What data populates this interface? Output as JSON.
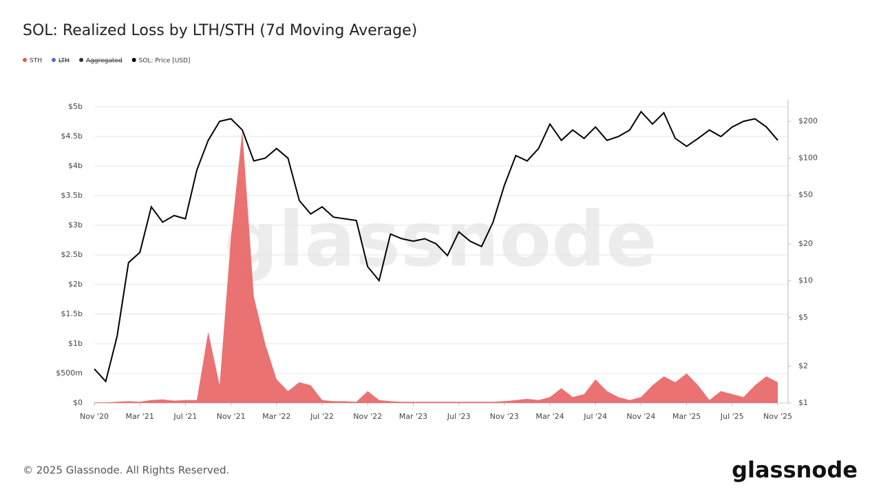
{
  "chart_data": {
    "type": "area-line",
    "title": "SOL: Realized Loss by LTH/STH (7d Moving Average)",
    "watermark": "glassnode",
    "footer": "© 2025 Glassnode. All Rights Reserved.",
    "logo": "glassnode",
    "legend": [
      {
        "name": "STH",
        "color": "#e05a5a",
        "hidden": false
      },
      {
        "name": "LTH",
        "color": "#5868d0",
        "hidden": true
      },
      {
        "name": "Aggregated",
        "color": "#333333",
        "hidden": true
      },
      {
        "name": "SOL: Price [USD]",
        "color": "#000000",
        "hidden": false
      }
    ],
    "categories": [
      "2020-11",
      "2020-12",
      "2021-01",
      "2021-02",
      "2021-03",
      "2021-04",
      "2021-05",
      "2021-06",
      "2021-07",
      "2021-08",
      "2021-09",
      "2021-10",
      "2021-11",
      "2021-12",
      "2022-01",
      "2022-02",
      "2022-03",
      "2022-04",
      "2022-05",
      "2022-06",
      "2022-07",
      "2022-08",
      "2022-09",
      "2022-10",
      "2022-11",
      "2022-12",
      "2023-01",
      "2023-02",
      "2023-03",
      "2023-04",
      "2023-05",
      "2023-06",
      "2023-07",
      "2023-08",
      "2023-09",
      "2023-10",
      "2023-11",
      "2023-12",
      "2024-01",
      "2024-02",
      "2024-03",
      "2024-04",
      "2024-05",
      "2024-06",
      "2024-07",
      "2024-08",
      "2024-09",
      "2024-10",
      "2024-11",
      "2024-12",
      "2025-01",
      "2025-02",
      "2025-03",
      "2025-04",
      "2025-05",
      "2025-06",
      "2025-07",
      "2025-08",
      "2025-09",
      "2025-10",
      "2025-11"
    ],
    "series": [
      {
        "name": "STH",
        "color": "#e96a6a",
        "axis": "y",
        "values": [
          0.01,
          0.01,
          0.02,
          0.03,
          0.02,
          0.05,
          0.06,
          0.04,
          0.05,
          0.05,
          1.2,
          0.3,
          2.8,
          4.6,
          1.8,
          1.0,
          0.4,
          0.2,
          0.35,
          0.3,
          0.05,
          0.03,
          0.03,
          0.02,
          0.2,
          0.05,
          0.03,
          0.02,
          0.02,
          0.02,
          0.02,
          0.02,
          0.02,
          0.02,
          0.02,
          0.02,
          0.03,
          0.05,
          0.07,
          0.05,
          0.1,
          0.25,
          0.1,
          0.15,
          0.4,
          0.2,
          0.1,
          0.05,
          0.1,
          0.3,
          0.45,
          0.35,
          0.5,
          0.3,
          0.05,
          0.2,
          0.15,
          0.1,
          0.3,
          0.45,
          0.35
        ]
      },
      {
        "name": "SOL: Price [USD]",
        "color": "#000000",
        "axis": "y2",
        "values": [
          1.9,
          1.5,
          3.5,
          14,
          17,
          40,
          30,
          34,
          32,
          80,
          140,
          200,
          210,
          170,
          95,
          100,
          120,
          100,
          45,
          35,
          40,
          33,
          32,
          31,
          13,
          10,
          24,
          22,
          21,
          22,
          20,
          16,
          25,
          21,
          19,
          30,
          60,
          105,
          95,
          120,
          190,
          140,
          170,
          145,
          180,
          140,
          150,
          170,
          240,
          190,
          235,
          145,
          125,
          145,
          170,
          150,
          180,
          200,
          210,
          180,
          140
        ]
      }
    ],
    "ylim": [
      0,
      5
    ],
    "yticks": [
      {
        "value": 0,
        "label": "$0"
      },
      {
        "value": 0.5,
        "label": "$500m"
      },
      {
        "value": 1,
        "label": "$1b"
      },
      {
        "value": 1.5,
        "label": "$1.5b"
      },
      {
        "value": 2,
        "label": "$2b"
      },
      {
        "value": 2.5,
        "label": "$2.5b"
      },
      {
        "value": 3,
        "label": "$3b"
      },
      {
        "value": 3.5,
        "label": "$3.5b"
      },
      {
        "value": 4,
        "label": "$4b"
      },
      {
        "value": 4.5,
        "label": "$4.5b"
      },
      {
        "value": 5,
        "label": "$5b"
      }
    ],
    "y2lim": [
      1,
      263
    ],
    "y2log": true,
    "y2ticks": [
      {
        "value": 1,
        "label": "$1"
      },
      {
        "value": 2,
        "label": "$2"
      },
      {
        "value": 5,
        "label": "$5"
      },
      {
        "value": 10,
        "label": "$10"
      },
      {
        "value": 20,
        "label": "$20"
      },
      {
        "value": 50,
        "label": "$50"
      },
      {
        "value": 100,
        "label": "$100"
      },
      {
        "value": 200,
        "label": "$200"
      }
    ],
    "xticks": [
      {
        "value": "2020-11",
        "label": "Nov '20"
      },
      {
        "value": "2021-03",
        "label": "Mar '21"
      },
      {
        "value": "2021-07",
        "label": "Jul '21"
      },
      {
        "value": "2021-11",
        "label": "Nov '21"
      },
      {
        "value": "2022-03",
        "label": "Mar '22"
      },
      {
        "value": "2022-07",
        "label": "Jul '22"
      },
      {
        "value": "2022-11",
        "label": "Nov '22"
      },
      {
        "value": "2023-03",
        "label": "Mar '23"
      },
      {
        "value": "2023-07",
        "label": "Jul '23"
      },
      {
        "value": "2023-11",
        "label": "Nov '23"
      },
      {
        "value": "2024-03",
        "label": "Mar '24"
      },
      {
        "value": "2024-07",
        "label": "Jul '24"
      },
      {
        "value": "2024-11",
        "label": "Nov '24"
      },
      {
        "value": "2025-03",
        "label": "Mar '25"
      },
      {
        "value": "2025-07",
        "label": "Jul '25"
      },
      {
        "value": "2025-11",
        "label": "Nov '25"
      }
    ],
    "grid": true
  }
}
